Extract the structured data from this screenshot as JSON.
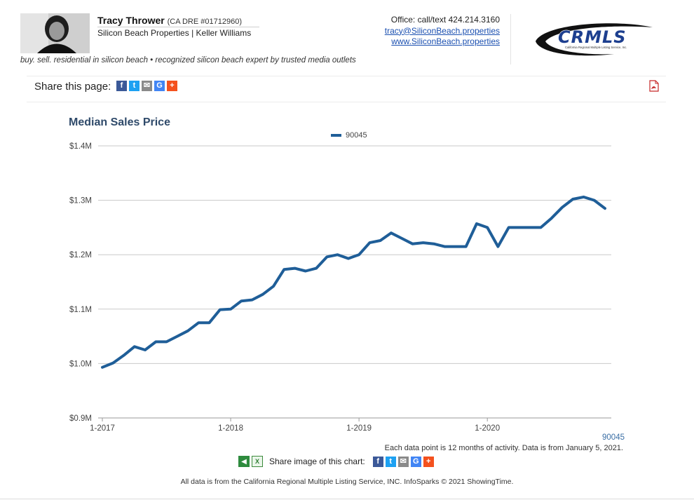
{
  "agent": {
    "name": "Tracy Thrower",
    "dre": "(CA DRE #01712960)",
    "company": "Silicon Beach Properties | Keller Williams",
    "tagline": "buy. sell. residential in silicon beach • recognized silicon beach expert by trusted media outlets"
  },
  "contact": {
    "office": "Office: call/text 424.214.3160",
    "email": "tracy@SiliconBeach.properties",
    "website": "www.SiliconBeach.properties"
  },
  "logo": {
    "text": "CRMLS",
    "subtext": "California Regional Multiple Listing Service, Inc."
  },
  "share_page": {
    "label": "Share this page:"
  },
  "share_icons": [
    "f",
    "t",
    "✉",
    "G",
    "+"
  ],
  "chart_note": "Each data point is 12 months of activity. Data is from January 5, 2021.",
  "share_chart": {
    "label": "Share image of this chart:"
  },
  "footer": "All data is from the California Regional Multiple Listing Service, INC. InfoSparks © 2021 ShowingTime.",
  "colors": {
    "series": "#1f5e98",
    "title": "#2f4a6a",
    "grid": "#c9c9c9"
  },
  "chart_data": {
    "type": "line",
    "title": "Median Sales Price",
    "legend": "top-center",
    "grid": true,
    "x_start": "2017-01",
    "x_ticks": [
      "1-2017",
      "1-2018",
      "1-2019",
      "1-2020"
    ],
    "y_ticks": [
      "$0.9M",
      "$1.0M",
      "$1.1M",
      "$1.2M",
      "$1.3M",
      "$1.4M"
    ],
    "ylim": [
      0.9,
      1.4
    ],
    "y_unit": "$M",
    "series": [
      {
        "name": "90045",
        "values": [
          0.993,
          1.001,
          1.015,
          1.031,
          1.025,
          1.04,
          1.04,
          1.05,
          1.06,
          1.075,
          1.075,
          1.099,
          1.1,
          1.115,
          1.117,
          1.127,
          1.142,
          1.173,
          1.175,
          1.17,
          1.175,
          1.196,
          1.2,
          1.193,
          1.2,
          1.222,
          1.226,
          1.24,
          1.23,
          1.22,
          1.222,
          1.22,
          1.215,
          1.215,
          1.215,
          1.257,
          1.25,
          1.215,
          1.25,
          1.25,
          1.25,
          1.25,
          1.267,
          1.287,
          1.302,
          1.306,
          1.3,
          1.285
        ]
      }
    ]
  }
}
